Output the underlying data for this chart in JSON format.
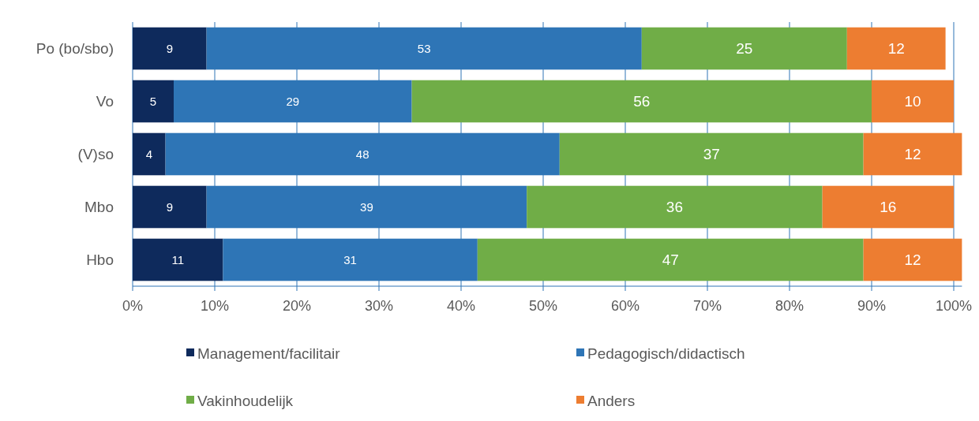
{
  "chart_data": {
    "type": "bar",
    "orientation": "horizontal",
    "stacked": true,
    "categories": [
      "Po (bo/sbo)",
      "Vo",
      "(V)so",
      "Mbo",
      "Hbo"
    ],
    "series": [
      {
        "name": "Management/facilitair",
        "color": "#0e2a5c",
        "values": [
          9,
          5,
          4,
          9,
          11
        ]
      },
      {
        "name": "Pedagogisch/didactisch",
        "color": "#2e75b6",
        "values": [
          53,
          29,
          48,
          39,
          31
        ]
      },
      {
        "name": "Vakinhoudelijk",
        "color": "#70ad47",
        "values": [
          25,
          56,
          37,
          36,
          47
        ]
      },
      {
        "name": "Anders",
        "color": "#ed7d31",
        "values": [
          12,
          10,
          12,
          16,
          12
        ]
      }
    ],
    "xlim": [
      0,
      101
    ],
    "xticks": [
      {
        "value": 0,
        "label": "0%"
      },
      {
        "value": 10,
        "label": "10%"
      },
      {
        "value": 20,
        "label": "20%"
      },
      {
        "value": 30,
        "label": "30%"
      },
      {
        "value": 40,
        "label": "40%"
      },
      {
        "value": 50,
        "label": "50%"
      },
      {
        "value": 60,
        "label": "60%"
      },
      {
        "value": 70,
        "label": "70%"
      },
      {
        "value": 80,
        "label": "80%"
      },
      {
        "value": 90,
        "label": "90%"
      },
      {
        "value": 100,
        "label": "100%"
      }
    ],
    "grid": "x",
    "legend": "bottom",
    "data_labels": true
  }
}
